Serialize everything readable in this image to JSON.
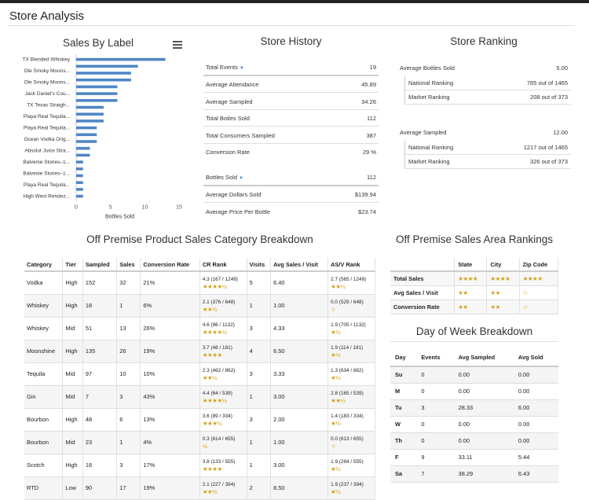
{
  "page": {
    "title": "Store Analysis"
  },
  "sales_chart": {
    "title": "Sales By Label",
    "xlabel": "Bottles Sold"
  },
  "chart_data": {
    "type": "bar",
    "orientation": "horizontal",
    "title": "Sales By Label",
    "xlabel": "Bottles Sold",
    "ylabel": "",
    "xlim": [
      0,
      15
    ],
    "xticks": [
      0,
      5,
      10,
      15
    ],
    "categories": [
      "TX Blended Whiskey",
      "Ole Smoky Moons...",
      "Ole Smoky Moons...",
      "Jack Daniel's Cou...",
      "TX Texas Straigh...",
      "Playa Real Tequila...",
      "Playa Real Tequila...",
      "Ocean Vodka Orig...",
      "Absolut Juice Stra...",
      "Balvenie Stories–1...",
      "Balvenie Stories–1...",
      "Playa Real Tequila...",
      "High West Rendez..."
    ],
    "categories_hidden_between": true,
    "values": [
      13,
      9,
      8,
      8,
      6,
      6,
      4,
      4,
      3,
      3,
      2,
      1,
      1
    ],
    "all_bars": [
      13,
      9,
      8,
      8,
      6,
      6,
      6,
      4,
      4,
      4,
      3,
      3,
      3,
      2,
      2,
      1,
      1,
      1,
      1,
      1,
      1
    ],
    "grid": false,
    "color": "#4f86c6"
  },
  "store_history": {
    "title": "Store History",
    "rows": [
      {
        "label": "Total Events",
        "value": "19",
        "caret": true
      },
      {
        "label": "Average Attendance",
        "value": "45.89"
      },
      {
        "label": "Average Sampled",
        "value": "34.26"
      },
      {
        "label": "Total Botles Sold",
        "value": "112"
      },
      {
        "label": "Total Consumers Sampled",
        "value": "387"
      },
      {
        "label": "Conversion Rate",
        "value": "29 %"
      }
    ],
    "rows2": [
      {
        "label": "Bottles Sold",
        "value": "112",
        "caret": true
      },
      {
        "label": "Average Dollars Sold",
        "value": "$139.94"
      },
      {
        "label": "Average Price Per Bottle",
        "value": "$23.74"
      }
    ]
  },
  "store_ranking": {
    "title": "Store Ranking",
    "groups": [
      {
        "label": "Average Bottles Sold",
        "value": "5.00",
        "subs": [
          {
            "label": "National Ranking",
            "value": "785 out of 1465"
          },
          {
            "label": "Market Ranking",
            "value": "208 out of 373"
          }
        ]
      },
      {
        "label": "Average Sampled",
        "value": "12.00",
        "subs": [
          {
            "label": "National Ranking",
            "value": "1217 out of 1465"
          },
          {
            "label": "Market Ranking",
            "value": "326 out of 373"
          }
        ]
      }
    ]
  },
  "category_breakdown": {
    "title": "Off Premise Product Sales Category Breakdown",
    "headers": [
      "Category",
      "Tier",
      "Sampled",
      "Sales",
      "Conversion Rate",
      "CR Rank",
      "Visits",
      "Avg Sales / Visit",
      "AS/V Rank"
    ],
    "rows": [
      {
        "category": "Vodka",
        "tier": "High",
        "sampled": "152",
        "sales": "32",
        "cr": "21%",
        "cr_rank": "4.3 (167 / 1249)",
        "cr_stars": "★★★★½",
        "visits": "5",
        "asv": "6.40",
        "asv_rank": "2.7 (565 / 1249)",
        "asv_stars": "★★½"
      },
      {
        "category": "Whiskey",
        "tier": "High",
        "sampled": "18",
        "sales": "1",
        "cr": "6%",
        "cr_rank": "2.1 (376 / 648)",
        "cr_stars": "★★½",
        "visits": "1",
        "asv": "1.00",
        "asv_rank": "0.0 (529 / 648)",
        "asv_stars": "☆"
      },
      {
        "category": "Whiskey",
        "tier": "Mid",
        "sampled": "51",
        "sales": "13",
        "cr": "26%",
        "cr_rank": "4.6 (96 / 1132)",
        "cr_stars": "★★★★½",
        "visits": "3",
        "asv": "4.33",
        "asv_rank": "1.9 (705 / 1132)",
        "asv_stars": "★½"
      },
      {
        "category": "Moonshine",
        "tier": "High",
        "sampled": "135",
        "sales": "26",
        "cr": "19%",
        "cr_rank": "3.7 (48 / 181)",
        "cr_stars": "★★★★",
        "visits": "4",
        "asv": "6.50",
        "asv_rank": "1.9 (114 / 181)",
        "asv_stars": "★½"
      },
      {
        "category": "Tequila",
        "tier": "Mid",
        "sampled": "97",
        "sales": "10",
        "cr": "10%",
        "cr_rank": "2.3 (462 / 862)",
        "cr_stars": "★★½",
        "visits": "3",
        "asv": "3.33",
        "asv_rank": "1.3 (634 / 862)",
        "asv_stars": "★½"
      },
      {
        "category": "Gin",
        "tier": "Mid",
        "sampled": "7",
        "sales": "3",
        "cr": "43%",
        "cr_rank": "4.4 (64 / 539)",
        "cr_stars": "★★★★½",
        "visits": "1",
        "asv": "3.00",
        "asv_rank": "2.8 (165 / 539)",
        "asv_stars": "★★½"
      },
      {
        "category": "Bourbon",
        "tier": "High",
        "sampled": "48",
        "sales": "6",
        "cr": "13%",
        "cr_rank": "3.6 (89 / 334)",
        "cr_stars": "★★★½",
        "visits": "3",
        "asv": "2.00",
        "asv_rank": "1.4 (183 / 334)",
        "asv_stars": "★½"
      },
      {
        "category": "Bourbon",
        "tier": "Mid",
        "sampled": "23",
        "sales": "1",
        "cr": "4%",
        "cr_rank": "0.3 (614 / 655)",
        "cr_stars": "½",
        "visits": "1",
        "asv": "1.00",
        "asv_rank": "0.0 (613 / 655)",
        "asv_stars": "☆"
      },
      {
        "category": "Scotch",
        "tier": "High",
        "sampled": "18",
        "sales": "3",
        "cr": "17%",
        "cr_rank": "3.8 (133 / 555)",
        "cr_stars": "★★★★",
        "visits": "1",
        "asv": "3.00",
        "asv_rank": "1.9 (284 / 555)",
        "asv_stars": "★½"
      },
      {
        "category": "RTD",
        "tier": "Low",
        "sampled": "90",
        "sales": "17",
        "cr": "19%",
        "cr_rank": "2.1 (227 / 394)",
        "cr_stars": "★★½",
        "visits": "2",
        "asv": "8.50",
        "asv_rank": "1.9 (237 / 394)",
        "asv_stars": "★½"
      }
    ]
  },
  "area_rankings": {
    "title": "Off Premise Sales Area Rankings",
    "headers": [
      "",
      "State",
      "City",
      "Zip Code"
    ],
    "rows": [
      {
        "label": "Total Sales",
        "state": "★★★★",
        "city": "★★★★",
        "zip": "★★★★"
      },
      {
        "label": "Avg Sales / Visit",
        "state": "★★",
        "city": "★★",
        "zip": "☆"
      },
      {
        "label": "Conversion Rate",
        "state": "★★",
        "city": "★★",
        "zip": "☆"
      }
    ]
  },
  "day_of_week": {
    "title": "Day of Week Breakdown",
    "headers": [
      "Day",
      "Events",
      "Avg Sampled",
      "Avg Sold"
    ],
    "rows": [
      {
        "day": "Su",
        "events": "0",
        "avg_sampled": "0.00",
        "avg_sold": "0.00"
      },
      {
        "day": "M",
        "events": "0",
        "avg_sampled": "0.00",
        "avg_sold": "0.00"
      },
      {
        "day": "Tu",
        "events": "3",
        "avg_sampled": "28.33",
        "avg_sold": "6.00"
      },
      {
        "day": "W",
        "events": "0",
        "avg_sampled": "0.00",
        "avg_sold": "0.00"
      },
      {
        "day": "Th",
        "events": "0",
        "avg_sampled": "0.00",
        "avg_sold": "0.00"
      },
      {
        "day": "F",
        "events": "9",
        "avg_sampled": "33.11",
        "avg_sold": "5.44"
      },
      {
        "day": "Sa",
        "events": "7",
        "avg_sampled": "38.29",
        "avg_sold": "6.43"
      }
    ]
  },
  "icons": {
    "menu": "hamburger-menu-icon",
    "sort": "sort-caret-icon",
    "star": "star-icon"
  },
  "colors": {
    "bar": "#4f86c6",
    "star": "#d4a017",
    "caret": "#3a7bd5"
  }
}
